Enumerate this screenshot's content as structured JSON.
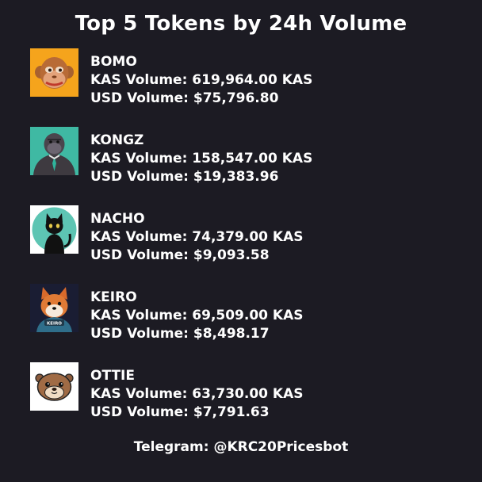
{
  "title": "Top 5 Tokens by 24h Volume",
  "tokens": [
    {
      "name": "BOMO",
      "kas": "KAS Volume: 619,964.00 KAS",
      "usd": "USD Volume: $75,796.80",
      "icon": "monkey-face-icon"
    },
    {
      "name": "KONGZ",
      "kas": "KAS Volume: 158,547.00 KAS",
      "usd": "USD Volume: $19,383.96",
      "icon": "gorilla-icon"
    },
    {
      "name": "NACHO",
      "kas": "KAS Volume: 74,379.00 KAS",
      "usd": "USD Volume: $9,093.58",
      "icon": "black-cat-icon"
    },
    {
      "name": "KEIRO",
      "kas": "KAS Volume: 69,509.00 KAS",
      "usd": "USD Volume: $8,498.17",
      "icon": "shiba-dog-icon",
      "badge": "KEIRO"
    },
    {
      "name": "OTTIE",
      "kas": "KAS Volume: 63,730.00 KAS",
      "usd": "USD Volume: $7,791.63",
      "icon": "otter-face-icon"
    }
  ],
  "footer": "Telegram: @KRC20Pricesbot",
  "colors": {
    "background": "#1c1b23",
    "text": "#ffffff",
    "bomo_bg": "#f5a41c",
    "kongz_bg": "#3fb9a3",
    "nacho_bg": "#5dc5b3",
    "keiro_bg": "#1a1d33",
    "ottie_bg": "#ffffff"
  }
}
